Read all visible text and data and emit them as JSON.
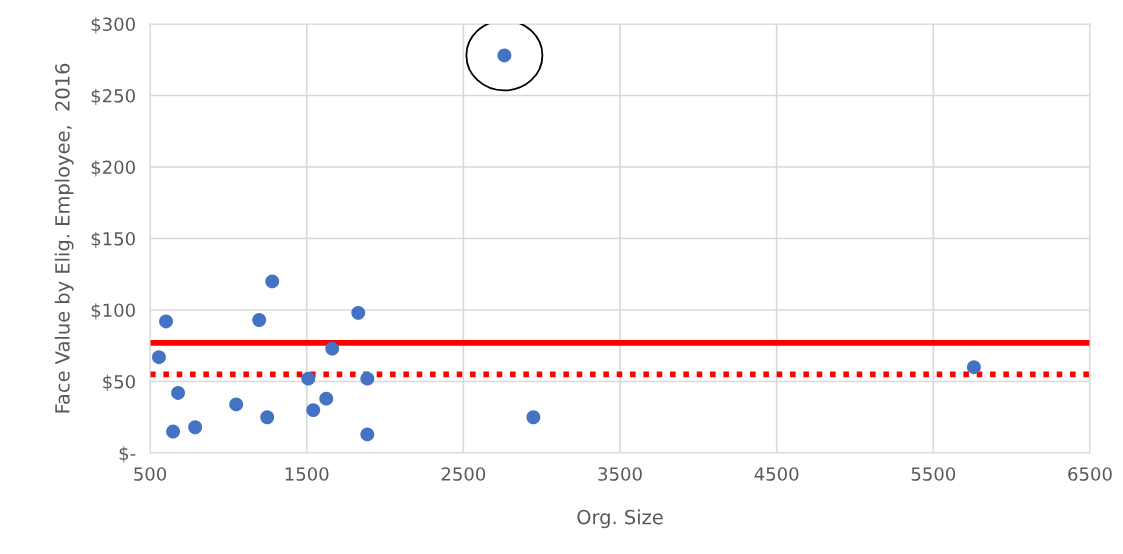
{
  "chart_data": {
    "type": "scatter",
    "xlabel": "Org. Size",
    "ylabel": "Face Value by Elig. Employee,  2016",
    "xlim": [
      500,
      6500
    ],
    "xticks": [
      500,
      1500,
      2500,
      3500,
      4500,
      5500,
      6500
    ],
    "ylim": [
      0,
      300
    ],
    "yticks": [
      {
        "value": 0,
        "label": "$-"
      },
      {
        "value": 50,
        "label": "$50"
      },
      {
        "value": 100,
        "label": "$100"
      },
      {
        "value": 150,
        "label": "$150"
      },
      {
        "value": 200,
        "label": "$200"
      },
      {
        "value": 250,
        "label": "$250"
      },
      {
        "value": 300,
        "label": "$300"
      }
    ],
    "grid": true,
    "marker": "circle",
    "legend": false,
    "series": [
      {
        "color": "#4472c4",
        "x": [
          557,
          602,
          679,
          647,
          788,
          1050,
          1197,
          1248,
          1280,
          1510,
          1542,
          1625,
          1663,
          1829,
          1887,
          1887,
          2762,
          2947,
          5759
        ],
        "values": [
          67,
          92,
          42,
          15,
          18,
          34,
          93,
          25,
          120,
          52,
          30,
          38,
          73,
          98,
          52,
          13,
          278,
          25,
          60
        ]
      }
    ],
    "ref_lines": [
      {
        "axis": "y",
        "value": 77,
        "color": "#ff0000",
        "line_style": "solid"
      },
      {
        "axis": "y",
        "value": 55,
        "color": "#ff0000",
        "line_style": "dotted"
      }
    ]
  }
}
